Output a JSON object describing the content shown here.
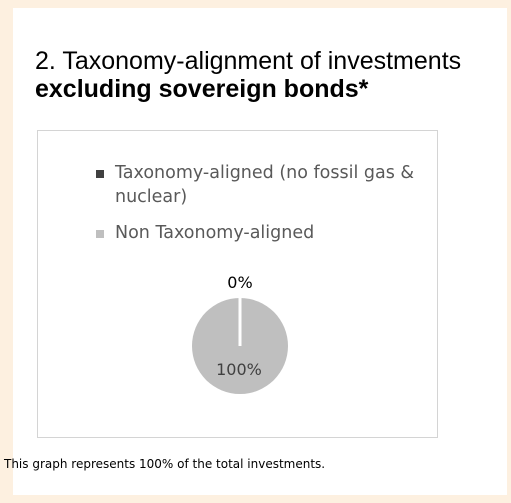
{
  "title": {
    "line1": "2. Taxonomy-alignment of investments",
    "line2": "excluding sovereign bonds*"
  },
  "chart_data": {
    "type": "pie",
    "series": [
      {
        "name": "Taxonomy-aligned (no fossil gas & nuclear)",
        "value": 0,
        "label": "0%",
        "color": "#404040"
      },
      {
        "name": "Non Taxonomy-aligned",
        "value": 100,
        "label": "100%",
        "color": "#bfbfbf"
      }
    ],
    "legend_position": "top"
  },
  "caption": "This graph represents 100% of the total investments.",
  "colors": {
    "background": "#fdf0e0",
    "panel": "#ffffff",
    "border": "#d4d4d4"
  }
}
